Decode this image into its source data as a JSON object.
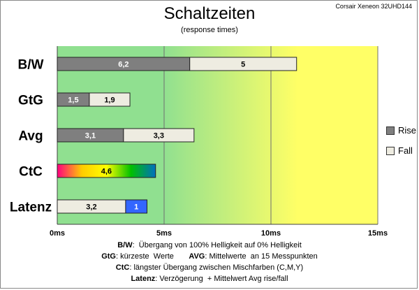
{
  "header": {
    "title": "Schaltzeiten",
    "subtitle": "(response times)",
    "monitor": "Corsair Xeneon 32UHD144"
  },
  "chart_data": {
    "type": "bar",
    "orientation": "horizontal",
    "stacked": true,
    "title": "Schaltzeiten",
    "subtitle": "(response times)",
    "categories": [
      "B/W",
      "GtG",
      "Avg",
      "CtC",
      "Latenz"
    ],
    "series": [
      {
        "name": "Rise",
        "values": [
          6.2,
          1.5,
          3.1,
          null,
          null
        ],
        "labels": [
          "6,2",
          "1,5",
          "3,1",
          "",
          ""
        ],
        "color": "#7f7f7f"
      },
      {
        "name": "Fall",
        "values": [
          5,
          1.9,
          3.3,
          null,
          3.2
        ],
        "labels": [
          "5",
          "1,9",
          "3,3",
          "",
          "3,2"
        ],
        "color": "#eeece1"
      },
      {
        "name": "",
        "values": [
          null,
          null,
          null,
          4.6,
          null
        ],
        "labels": [
          "",
          "",
          "",
          "4,6",
          ""
        ],
        "gradient": [
          "#ff0080",
          "#ffcc00",
          "#ffff00",
          "#00c000",
          "#0070c0"
        ]
      },
      {
        "name": "",
        "values": [
          null,
          null,
          null,
          null,
          1
        ],
        "labels": [
          "",
          "",
          "",
          "",
          "1"
        ],
        "color": "#3366ff"
      }
    ],
    "xlim": [
      0,
      15
    ],
    "xticks": [
      {
        "value": 0,
        "label": "0ms"
      },
      {
        "value": 5,
        "label": "5ms"
      },
      {
        "value": 10,
        "label": "10ms"
      },
      {
        "value": 15,
        "label": "15ms"
      }
    ],
    "background_zones": [
      "#90e090",
      "#ffff66"
    ],
    "legend": {
      "position": "right",
      "entries": [
        "Rise",
        "Fall"
      ]
    },
    "grid": true
  },
  "notes": [
    {
      "term": "B/W",
      "text": ":  Übergang von 100% Helligkeit auf 0% Helligkeit"
    },
    {
      "term": "GtG",
      "text": ": kürzeste  Werte",
      "term2": "AVG",
      "text2": ": Mittelwerte  an 15 Messpunkten"
    },
    {
      "term": "CtC",
      "text": ": längster Übergang zwischen Mischfarben (C,M,Y)"
    },
    {
      "term": "Latenz",
      "text": ": Verzögerung  + Mittelwert Avg rise/fall"
    }
  ]
}
